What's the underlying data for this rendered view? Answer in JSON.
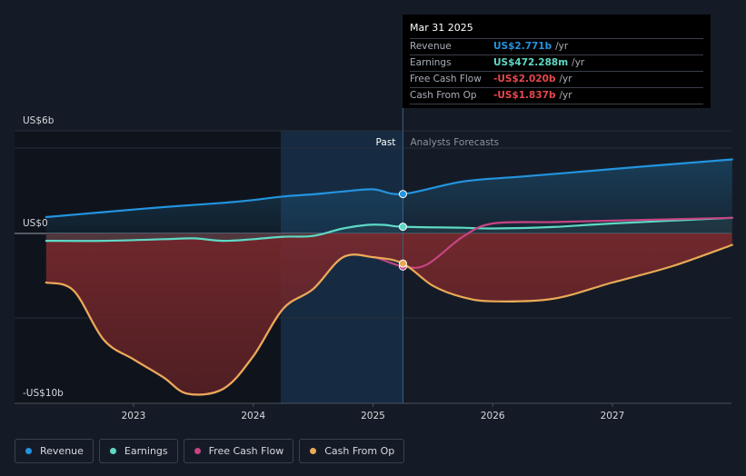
{
  "chart_data": {
    "type": "line",
    "y_top_label": "US$6b",
    "y_zero_label": "US$0",
    "y_bottom_label": "-US$10b",
    "ylim": [
      -10,
      6
    ],
    "xlim": [
      2022.27,
      2028.0
    ],
    "x_ticks": [
      {
        "value": 2023,
        "label": "2023"
      },
      {
        "value": 2024,
        "label": "2024"
      },
      {
        "value": 2025,
        "label": "2025"
      },
      {
        "value": 2026,
        "label": "2026"
      },
      {
        "value": 2027,
        "label": "2027"
      }
    ],
    "past_label": "Past",
    "forecast_label": "Analysts Forecasts",
    "forecast_start": 2025.25,
    "series": [
      {
        "name": "Revenue",
        "color": "#2394df",
        "points": [
          [
            2022.27,
            1.15
          ],
          [
            2022.75,
            1.5
          ],
          [
            2023.25,
            1.85
          ],
          [
            2023.75,
            2.15
          ],
          [
            2024.0,
            2.35
          ],
          [
            2024.25,
            2.6
          ],
          [
            2024.5,
            2.75
          ],
          [
            2024.75,
            2.95
          ],
          [
            2025.0,
            3.1
          ],
          [
            2025.25,
            2.771
          ],
          [
            2025.75,
            3.65
          ],
          [
            2026.25,
            4.0
          ],
          [
            2026.75,
            4.35
          ],
          [
            2027.25,
            4.7
          ],
          [
            2028.0,
            5.2
          ]
        ]
      },
      {
        "name": "Earnings",
        "color": "#5ed9c5",
        "points": [
          [
            2022.27,
            -0.45
          ],
          [
            2022.75,
            -0.45
          ],
          [
            2023.25,
            -0.35
          ],
          [
            2023.5,
            -0.3
          ],
          [
            2023.75,
            -0.45
          ],
          [
            2024.0,
            -0.35
          ],
          [
            2024.25,
            -0.2
          ],
          [
            2024.5,
            -0.15
          ],
          [
            2024.75,
            0.35
          ],
          [
            2024.95,
            0.6
          ],
          [
            2025.1,
            0.6
          ],
          [
            2025.25,
            0.472
          ],
          [
            2025.75,
            0.4
          ],
          [
            2026.0,
            0.35
          ],
          [
            2026.5,
            0.45
          ],
          [
            2027.0,
            0.7
          ],
          [
            2028.0,
            1.1
          ]
        ]
      },
      {
        "name": "Free Cash Flow",
        "color": "#c74482",
        "points": [
          [
            2022.27,
            -3.0
          ],
          [
            2022.5,
            -3.5
          ],
          [
            2022.75,
            -6.5
          ],
          [
            2023.0,
            -7.7
          ],
          [
            2023.25,
            -8.8
          ],
          [
            2023.45,
            -9.8
          ],
          [
            2023.75,
            -9.5
          ],
          [
            2024.0,
            -7.5
          ],
          [
            2024.25,
            -4.6
          ],
          [
            2024.5,
            -3.4
          ],
          [
            2024.75,
            -1.45
          ],
          [
            2025.0,
            -1.45
          ],
          [
            2025.25,
            -2.02
          ],
          [
            2025.45,
            -1.9
          ],
          [
            2025.75,
            -0.2
          ],
          [
            2026.0,
            0.7
          ],
          [
            2026.5,
            0.8
          ],
          [
            2027.0,
            0.9
          ],
          [
            2028.0,
            1.1
          ]
        ]
      },
      {
        "name": "Cash From Op",
        "color": "#e9aa56",
        "points": [
          [
            2022.27,
            -3.0
          ],
          [
            2022.5,
            -3.5
          ],
          [
            2022.75,
            -6.5
          ],
          [
            2023.0,
            -7.7
          ],
          [
            2023.25,
            -8.8
          ],
          [
            2023.45,
            -9.8
          ],
          [
            2023.75,
            -9.5
          ],
          [
            2024.0,
            -7.5
          ],
          [
            2024.25,
            -4.6
          ],
          [
            2024.5,
            -3.4
          ],
          [
            2024.75,
            -1.45
          ],
          [
            2025.0,
            -1.45
          ],
          [
            2025.25,
            -1.837
          ],
          [
            2025.5,
            -3.2
          ],
          [
            2025.75,
            -3.9
          ],
          [
            2026.0,
            -4.15
          ],
          [
            2026.5,
            -4.0
          ],
          [
            2027.0,
            -3.0
          ],
          [
            2027.5,
            -2.0
          ],
          [
            2028.0,
            -0.7
          ]
        ]
      }
    ]
  },
  "tooltip": {
    "date": "Mar 31 2025",
    "rows": [
      {
        "label": "Revenue",
        "value": "US$2.771b",
        "unit": "/yr",
        "color": "#2394df"
      },
      {
        "label": "Earnings",
        "value": "US$472.288m",
        "unit": "/yr",
        "color": "#5ed9c5"
      },
      {
        "label": "Free Cash Flow",
        "value": "-US$2.020b",
        "unit": "/yr",
        "color": "#e5484d"
      },
      {
        "label": "Cash From Op",
        "value": "-US$1.837b",
        "unit": "/yr",
        "color": "#e5484d"
      }
    ]
  },
  "legend": [
    {
      "label": "Revenue",
      "color": "#2394df"
    },
    {
      "label": "Earnings",
      "color": "#5ed9c5"
    },
    {
      "label": "Free Cash Flow",
      "color": "#c74482"
    },
    {
      "label": "Cash From Op",
      "color": "#e9aa56"
    }
  ]
}
